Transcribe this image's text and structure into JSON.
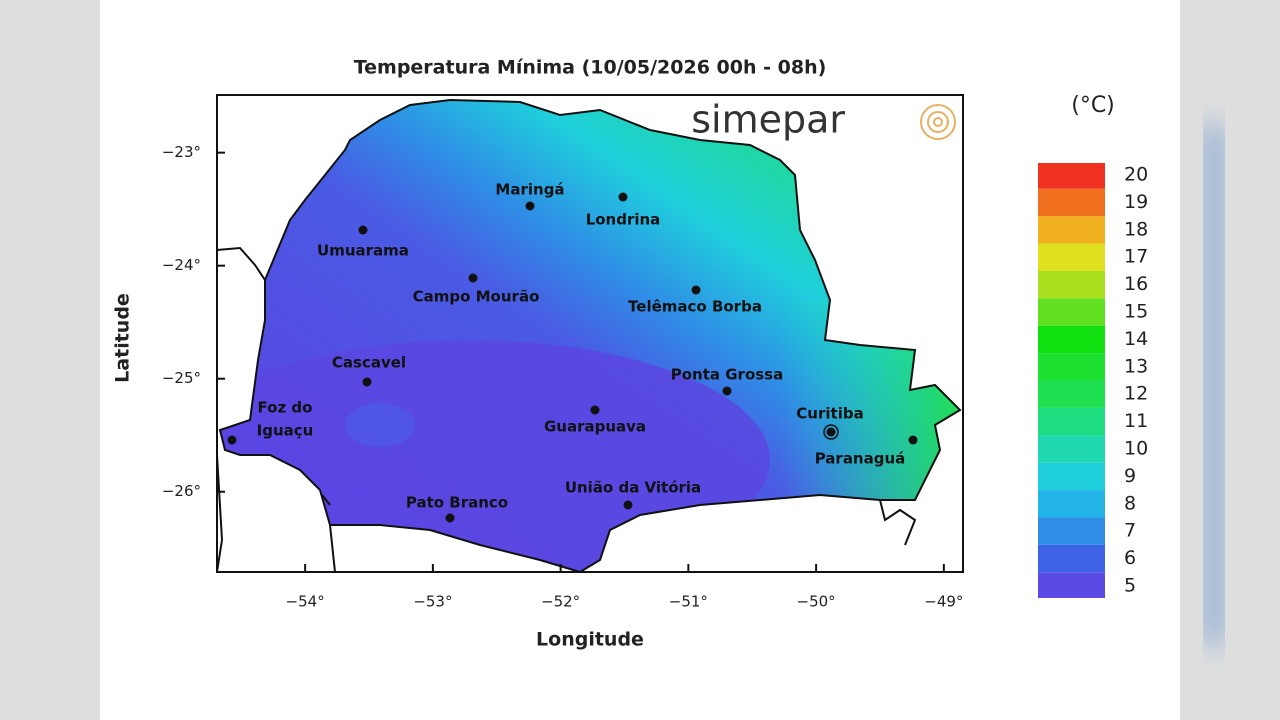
{
  "title": "Temperatura Mínima (10/05/2026 00h - 08h)",
  "logo": "simepar",
  "xlabel": "Longitude",
  "ylabel": "Latitude",
  "xlim": [
    -54.69,
    -48.85
  ],
  "ylim": [
    -26.71,
    -22.49
  ],
  "xticks": [
    {
      "value": -54,
      "label": "−54°"
    },
    {
      "value": -53,
      "label": "−53°"
    },
    {
      "value": -52,
      "label": "−52°"
    },
    {
      "value": -51,
      "label": "−51°"
    },
    {
      "value": -50,
      "label": "−50°"
    },
    {
      "value": -49,
      "label": "−49°"
    }
  ],
  "yticks": [
    {
      "value": -23,
      "label": "−23°"
    },
    {
      "value": -24,
      "label": "−24°"
    },
    {
      "value": -25,
      "label": "−25°"
    },
    {
      "value": -26,
      "label": "−26°"
    }
  ],
  "colorbar": {
    "unit": "(°C)",
    "lim": [
      4.56,
      20.44
    ],
    "ticks": [
      5,
      6,
      7,
      8,
      9,
      10,
      11,
      12,
      13,
      14,
      15,
      16,
      17,
      18,
      19,
      20
    ],
    "colors": [
      "#5a4be6",
      "#3f63e6",
      "#2f8de6",
      "#22b4e6",
      "#1fd0dc",
      "#1fd8b0",
      "#1edc80",
      "#1ee050",
      "#1ee030",
      "#10e010",
      "#60e020",
      "#a8e020",
      "#e0e020",
      "#f0b020",
      "#f07020",
      "#f03020"
    ]
  },
  "cities": [
    {
      "label_lines": [
        "Maringá"
      ]
    },
    {
      "label_lines": [
        "Londrina"
      ]
    },
    {
      "label_lines": [
        "Umuarama"
      ]
    },
    {
      "label_lines": [
        "Campo Mourão"
      ]
    },
    {
      "label_lines": [
        "Telêmaco Borba"
      ]
    },
    {
      "label_lines": [
        "Cascavel"
      ]
    },
    {
      "label_lines": [
        "Ponta Grossa"
      ]
    },
    {
      "label_lines": [
        "Foz do",
        "Iguaçu"
      ]
    },
    {
      "label_lines": [
        "Guarapuava"
      ]
    },
    {
      "label_lines": [
        "Curitiba"
      ]
    },
    {
      "label_lines": [
        "Paranaguá"
      ]
    },
    {
      "label_lines": [
        "Pato Branco"
      ]
    },
    {
      "label_lines": [
        "União da Vitória"
      ]
    }
  ]
}
